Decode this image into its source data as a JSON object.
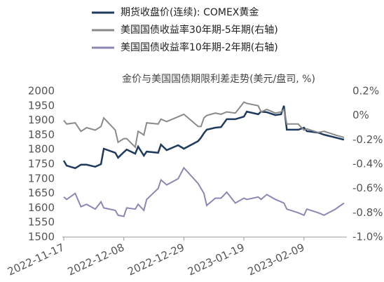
{
  "chart_data": {
    "type": "line",
    "title": "金价与美国国债期限利差走势(美元/盘司, %)",
    "x": [
      "2022-11-17",
      "2022-11-18",
      "2022-11-21",
      "2022-11-23",
      "2022-11-25",
      "2022-11-28",
      "2022-11-30",
      "2022-12-01",
      "2022-12-05",
      "2022-12-06",
      "2022-12-08",
      "2022-12-09",
      "2022-12-12",
      "2022-12-13",
      "2022-12-15",
      "2022-12-16",
      "2022-12-20",
      "2022-12-21",
      "2022-12-23",
      "2022-12-27",
      "2022-12-29",
      "2023-01-03",
      "2023-01-04",
      "2023-01-05",
      "2023-01-06",
      "2023-01-09",
      "2023-01-11",
      "2023-01-13",
      "2023-01-16",
      "2023-01-19",
      "2023-01-20",
      "2023-01-24",
      "2023-01-25",
      "2023-01-27",
      "2023-01-30",
      "2023-02-01",
      "2023-02-02",
      "2023-02-03",
      "2023-02-07",
      "2023-02-09",
      "2023-02-10",
      "2023-02-14",
      "2023-02-16",
      "2023-02-20",
      "2023-02-23"
    ],
    "series": [
      {
        "name": "期货收盘价(连续): COMEX黄金",
        "color": "#1f3a5f",
        "values": [
          1762,
          1745,
          1736,
          1748,
          1748,
          1741,
          1750,
          1803,
          1789,
          1772,
          1791,
          1800,
          1786,
          1810,
          1779,
          1793,
          1789,
          1817,
          1798,
          1815,
          1803,
          1829,
          1841,
          1856,
          1868,
          1875,
          1877,
          1904,
          1904,
          1913,
          1930,
          1921,
          1930,
          1928,
          1918,
          1921,
          1950,
          1868,
          1868,
          1875,
          1863,
          1858,
          1851,
          1841,
          1834
        ]
      },
      {
        "name": "美国国债收益率30年期-5年期(右轴)",
        "color": "#8a8a8a",
        "axis": "y2",
        "values": [
          -0.04,
          -0.07,
          -0.06,
          -0.13,
          -0.1,
          -0.12,
          -0.09,
          -0.02,
          -0.12,
          -0.22,
          -0.19,
          -0.19,
          -0.26,
          -0.13,
          -0.16,
          -0.06,
          -0.07,
          -0.03,
          -0.05,
          -0.01,
          0.01,
          -0.09,
          -0.09,
          -0.02,
          0.0,
          0.02,
          0.01,
          0.03,
          0.02,
          0.11,
          0.1,
          0.08,
          0.03,
          0.05,
          0.02,
          0.03,
          0.05,
          -0.07,
          -0.07,
          -0.12,
          -0.11,
          -0.14,
          -0.13,
          -0.16,
          -0.18
        ]
      },
      {
        "name": "美国国债收益率10年期-2年期(右轴)",
        "color": "#8c87b5",
        "axis": "y2",
        "values": [
          -0.67,
          -0.69,
          -0.64,
          -0.75,
          -0.73,
          -0.77,
          -0.71,
          -0.76,
          -0.78,
          -0.82,
          -0.83,
          -0.76,
          -0.77,
          -0.73,
          -0.78,
          -0.69,
          -0.6,
          -0.53,
          -0.57,
          -0.52,
          -0.43,
          -0.56,
          -0.6,
          -0.64,
          -0.74,
          -0.68,
          -0.68,
          -0.63,
          -0.72,
          -0.68,
          -0.69,
          -0.67,
          -0.69,
          -0.65,
          -0.69,
          -0.71,
          -0.72,
          -0.77,
          -0.8,
          -0.82,
          -0.77,
          -0.8,
          -0.82,
          -0.77,
          -0.72
        ]
      }
    ],
    "xlim": [
      "2022-11-17",
      "2023-02-24"
    ],
    "xticks": [
      "2022-11-17",
      "2022-12-08",
      "2022-12-29",
      "2023-01-19",
      "2023-02-09"
    ],
    "ylim": [
      1500,
      2000
    ],
    "yticks": [
      1500,
      1550,
      1600,
      1650,
      1700,
      1750,
      1800,
      1850,
      1900,
      1950,
      2000
    ],
    "y2lim": [
      -1.0,
      0.2
    ],
    "y2ticks": [
      {
        "value": 0.2,
        "label": "0.2%"
      },
      {
        "value": 0,
        "label": "0%"
      },
      {
        "value": -0.2,
        "label": "-0.2%"
      },
      {
        "value": -0.4,
        "label": "-0.4%"
      },
      {
        "value": -0.6,
        "label": "-0.6%"
      },
      {
        "value": -0.8,
        "label": "-0.8%"
      },
      {
        "value": -1.0,
        "label": "-1.0%"
      }
    ]
  }
}
